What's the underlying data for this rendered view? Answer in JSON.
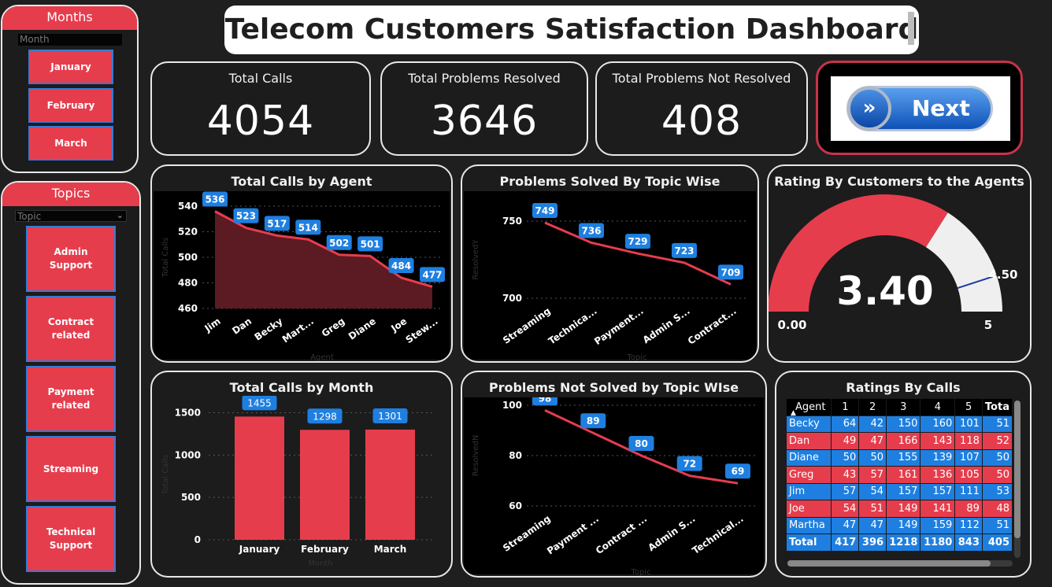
{
  "title": "Telecom Customers Satisfaction Dashboard",
  "months_slicer": {
    "header": "Months",
    "sub": "Month",
    "items": [
      "January",
      "February",
      "March"
    ]
  },
  "topics_slicer": {
    "header": "Topics",
    "sub": "Topic",
    "items": [
      "Admin Support",
      "Contract related",
      "Payment related",
      "Streaming",
      "Technical Support"
    ]
  },
  "kpis": {
    "total_calls": {
      "label": "Total Calls",
      "value": "4054"
    },
    "resolved": {
      "label": "Total Problems Resolved",
      "value": "3646"
    },
    "not_resolved": {
      "label": "Total Problems Not Resolved",
      "value": "408"
    }
  },
  "next_button": {
    "label": "Next",
    "icon": "double-chevron-right-icon"
  },
  "colors": {
    "accent": "#e63d4d",
    "label_blue": "#1e7fe0",
    "bg": "#1f1f1f"
  },
  "chart_data": [
    {
      "type": "area",
      "title": "Total Calls by Agent",
      "xlabel": "Agent",
      "ylabel": "Total Calls",
      "categories": [
        "Jim",
        "Dan",
        "Becky",
        "Mart...",
        "Greg",
        "Diane",
        "Joe",
        "Stew..."
      ],
      "values": [
        536,
        523,
        517,
        514,
        502,
        501,
        484,
        477
      ],
      "yticks": [
        460,
        480,
        500,
        520,
        540
      ],
      "ylim": [
        460,
        540
      ]
    },
    {
      "type": "line",
      "title": "Problems Solved By Topic Wise",
      "xlabel": "Topic",
      "ylabel": "ResolvedY",
      "categories": [
        "Streaming",
        "Technica...",
        "Payment...",
        "Admin S...",
        "Contract..."
      ],
      "values": [
        749,
        736,
        729,
        723,
        709
      ],
      "yticks": [
        700,
        750
      ],
      "ylim": [
        700,
        750
      ]
    },
    {
      "type": "gauge",
      "title": "Rating By Customers to the Agents",
      "value": 3.4,
      "value_label": "3.40",
      "min_label": "0.00",
      "max_label": "5",
      "target": 4.5,
      "target_label": "4.50",
      "min": 0,
      "max": 5
    },
    {
      "type": "bar",
      "title": "Total Calls by Month",
      "xlabel": "Month",
      "ylabel": "Total Calls",
      "categories": [
        "January",
        "February",
        "March"
      ],
      "values": [
        1455,
        1298,
        1301
      ],
      "yticks": [
        0,
        500,
        1000,
        1500
      ],
      "ylim": [
        0,
        1700
      ]
    },
    {
      "type": "line",
      "title": "Problems Not Solved by Topic WIse",
      "xlabel": "Topic",
      "ylabel": "ResolvedN",
      "categories": [
        "Streaming",
        "Payment ...",
        "Contract ...",
        "Admin S...",
        "Technical..."
      ],
      "values": [
        98,
        89,
        80,
        72,
        69
      ],
      "yticks": [
        60,
        80,
        100
      ],
      "ylim": [
        60,
        100
      ]
    },
    {
      "type": "table",
      "title": "Ratings By Calls",
      "columns": [
        "Agent",
        "1",
        "2",
        "3",
        "4",
        "5",
        "Tota"
      ],
      "rows": [
        [
          "Becky",
          "64",
          "42",
          "150",
          "160",
          "101",
          "51"
        ],
        [
          "Dan",
          "49",
          "47",
          "166",
          "143",
          "118",
          "52"
        ],
        [
          "Diane",
          "50",
          "50",
          "155",
          "139",
          "107",
          "50"
        ],
        [
          "Greg",
          "43",
          "57",
          "161",
          "136",
          "105",
          "50"
        ],
        [
          "Jim",
          "57",
          "54",
          "157",
          "157",
          "111",
          "53"
        ],
        [
          "Joe",
          "54",
          "51",
          "149",
          "141",
          "89",
          "48"
        ],
        [
          "Martha",
          "47",
          "47",
          "149",
          "159",
          "112",
          "51"
        ]
      ],
      "total": [
        "Total",
        "417",
        "396",
        "1218",
        "1180",
        "843",
        "405"
      ]
    }
  ]
}
